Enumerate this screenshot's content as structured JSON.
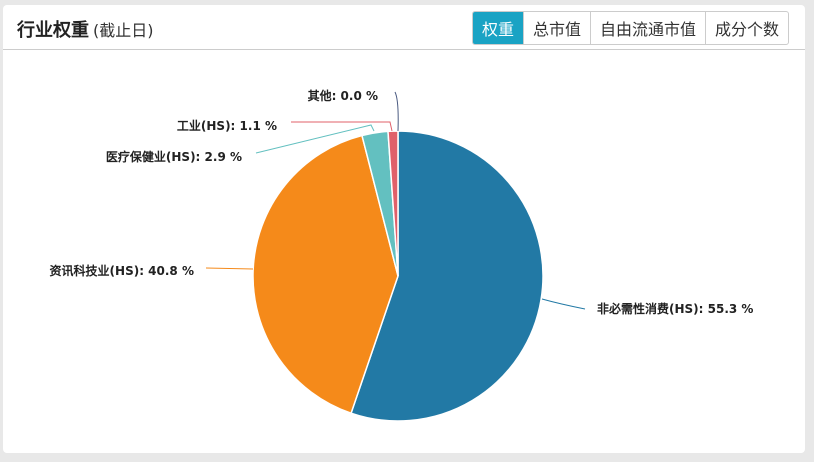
{
  "header": {
    "title": "行业权重",
    "subtitle": "(截止日)"
  },
  "tabs": [
    {
      "label": "权重",
      "active": true
    },
    {
      "label": "总市值"
    },
    {
      "label": "自由流通市值"
    },
    {
      "label": "成分个数"
    }
  ],
  "chart_data": {
    "type": "pie",
    "slices": [
      {
        "name": "非必需性消费(HS)",
        "value": 55.3,
        "label": "非必需性消费(HS): 55.3 %",
        "color": "#2279a5"
      },
      {
        "name": "资讯科技业(HS)",
        "value": 40.8,
        "label": "资讯科技业(HS): 40.8 %",
        "color": "#f58a1a"
      },
      {
        "name": "医疗保健业(HS)",
        "value": 2.9,
        "label": "医疗保健业(HS): 2.9 %",
        "color": "#63c0c0"
      },
      {
        "name": "工业(HS)",
        "value": 1.1,
        "label": "工业(HS): 1.1 %",
        "color": "#e0606a"
      },
      {
        "name": "其他",
        "value": 0.0,
        "label": "其他: 0.0 %",
        "color": "#4a5a80"
      }
    ]
  }
}
